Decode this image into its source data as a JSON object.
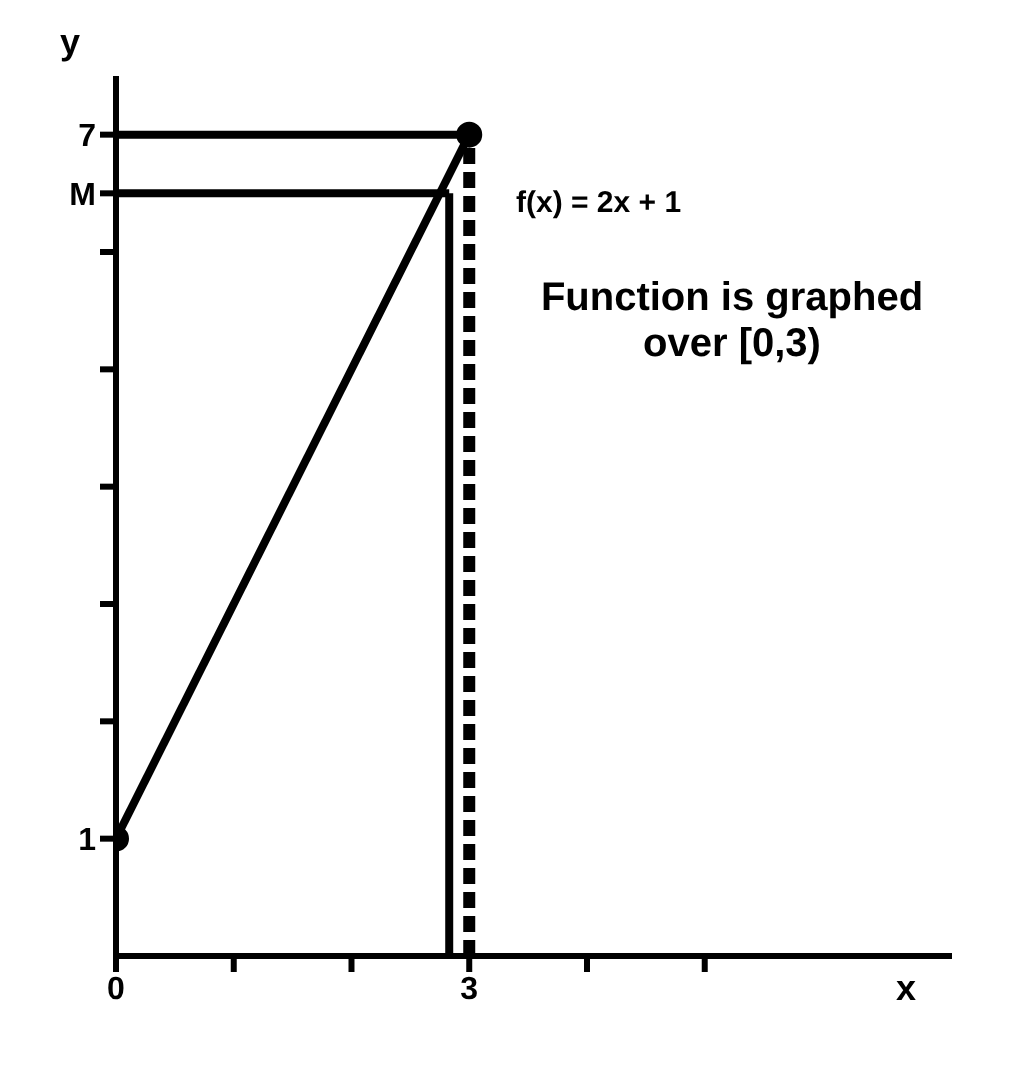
{
  "chart_data": {
    "type": "line",
    "xlabel": "x",
    "ylabel": "y",
    "annotations": [
      "f(x) = 2x + 1",
      "Function is graphed over [0,3)"
    ],
    "xlim": [
      0,
      7.1
    ],
    "ylim": [
      0,
      7.5
    ],
    "xticks": [
      0,
      {
        "value": 1,
        "label": null
      },
      {
        "value": 2,
        "label": null
      },
      3,
      {
        "value": 4,
        "label": null
      },
      {
        "value": 5,
        "label": null
      }
    ],
    "yticks": [
      1,
      {
        "value": 2,
        "label": null
      },
      {
        "value": 3,
        "label": null
      },
      {
        "value": 4,
        "label": null
      },
      {
        "value": 5,
        "label": null
      },
      {
        "value": 6,
        "label": null
      },
      {
        "value": 6.5,
        "label": "M"
      },
      7
    ],
    "grid": false,
    "series": [
      {
        "color": "#000000",
        "x": [
          0,
          3
        ],
        "values": [
          1,
          7
        ],
        "marker": "circle",
        "line_style": "solid"
      },
      {
        "color": "#000000",
        "x": [
          0,
          2.83
        ],
        "values": [
          6.5,
          6.5
        ],
        "marker": "none",
        "line_style": "solid"
      },
      {
        "color": "#000000",
        "x": [
          2.83,
          2.83
        ],
        "values": [
          0,
          6.5
        ],
        "marker": "none",
        "line_style": "solid"
      },
      {
        "color": "#000000",
        "x": [
          0,
          3
        ],
        "values": [
          7,
          7
        ],
        "marker": "none",
        "line_style": "solid"
      },
      {
        "color": "#000000",
        "x": [
          3,
          3
        ],
        "values": [
          0,
          7
        ],
        "marker": "none",
        "line_style": "dashed"
      }
    ]
  }
}
